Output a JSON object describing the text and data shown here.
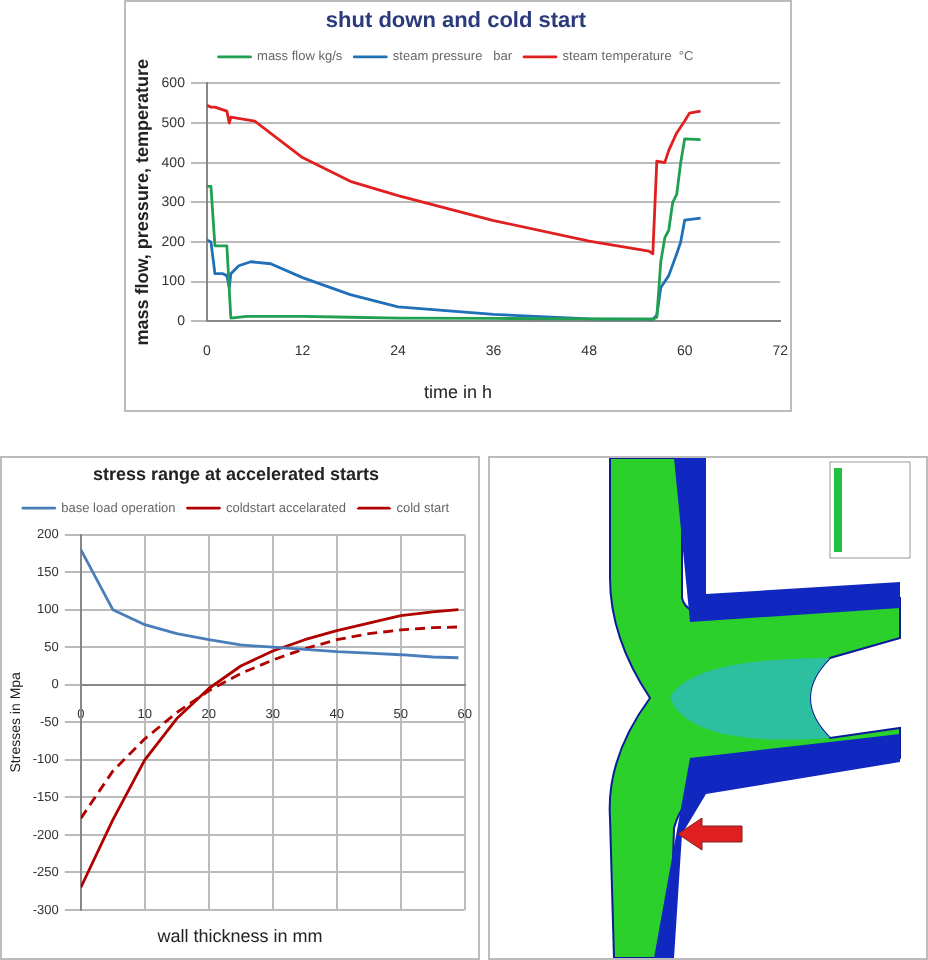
{
  "chart_data": [
    {
      "type": "line",
      "title": "shut down and cold start",
      "xlabel": "time in h",
      "ylabel": "mass flow, pressure, temperature",
      "xlim": [
        0,
        72
      ],
      "xticks": [
        0,
        12,
        24,
        36,
        48,
        60,
        72
      ],
      "ylim": [
        0,
        600
      ],
      "yticks": [
        0,
        100,
        200,
        300,
        400,
        500,
        600
      ],
      "grid": "y",
      "legend": "top",
      "marker": "none",
      "series": [
        {
          "name": "mass flow kg/s",
          "color": "#20a050",
          "x": [
            0,
            0.5,
            1,
            2.5,
            3,
            5,
            12,
            18,
            24,
            36,
            48,
            56,
            56.5,
            57,
            57.5,
            58,
            58.5,
            59,
            59.5,
            60,
            62
          ],
          "values": [
            340,
            340,
            190,
            190,
            8,
            12,
            12,
            10,
            8,
            7,
            6,
            5,
            10,
            150,
            210,
            230,
            300,
            320,
            400,
            460,
            458
          ]
        },
        {
          "name": "steam pressure   bar",
          "color": "#2070b8",
          "x": [
            0,
            0.5,
            1,
            2,
            2.5,
            2.8,
            3,
            4,
            5.5,
            8,
            12,
            18,
            24,
            36,
            48,
            56,
            56.5,
            57,
            58,
            59,
            59.5,
            60,
            62
          ],
          "values": [
            205,
            200,
            120,
            120,
            115,
            85,
            120,
            140,
            150,
            145,
            110,
            67,
            36,
            17,
            6,
            5,
            15,
            85,
            115,
            170,
            200,
            255,
            260
          ]
        },
        {
          "name": "steam temperature  °C",
          "color": "#e02020",
          "x": [
            0,
            0.5,
            1,
            2.5,
            2.8,
            3,
            6,
            12,
            18,
            24,
            36,
            48,
            55.5,
            56,
            56.5,
            57.5,
            58,
            59,
            60,
            60.6,
            62
          ],
          "values": [
            545,
            540,
            540,
            530,
            500,
            515,
            505,
            413,
            353,
            317,
            254,
            202,
            177,
            170,
            404,
            400,
            431,
            475,
            505,
            525,
            530
          ]
        }
      ]
    },
    {
      "type": "line",
      "title": "stress range at accelerated starts",
      "xlabel": "wall thickness in mm",
      "ylabel": "Stresses in Mpa",
      "xlim": [
        0,
        60
      ],
      "xticks": [
        0,
        10,
        20,
        30,
        40,
        50,
        60
      ],
      "ylim": [
        -300,
        200
      ],
      "yticks": [
        -300,
        -250,
        -200,
        -150,
        -100,
        -50,
        0,
        50,
        100,
        150,
        200
      ],
      "grid": true,
      "legend": "top",
      "marker": "none",
      "series": [
        {
          "name": "base load operation",
          "color": "#4a7ebb",
          "x": [
            0,
            5,
            10,
            15,
            20,
            25,
            30,
            35,
            40,
            45,
            50,
            55,
            59
          ],
          "values": [
            180,
            100,
            80,
            68,
            60,
            53,
            50,
            47,
            44,
            42,
            40,
            37,
            36
          ]
        },
        {
          "name": "coldstart accelarated",
          "color": "#b00000",
          "x": [
            0,
            5,
            10,
            15,
            20,
            25,
            30,
            35,
            40,
            45,
            50,
            55,
            59
          ],
          "values": [
            -270,
            -180,
            -100,
            -45,
            -5,
            25,
            45,
            60,
            72,
            82,
            92,
            97,
            100
          ]
        },
        {
          "name": "cold start",
          "color": "#b00000",
          "line_style": "dashed",
          "x": [
            0,
            5,
            10,
            15,
            20,
            25,
            30,
            35,
            40,
            45,
            50,
            55,
            59
          ],
          "values": [
            -178,
            -115,
            -72,
            -37,
            -8,
            15,
            33,
            48,
            60,
            68,
            73,
            76,
            77
          ]
        }
      ]
    }
  ]
}
